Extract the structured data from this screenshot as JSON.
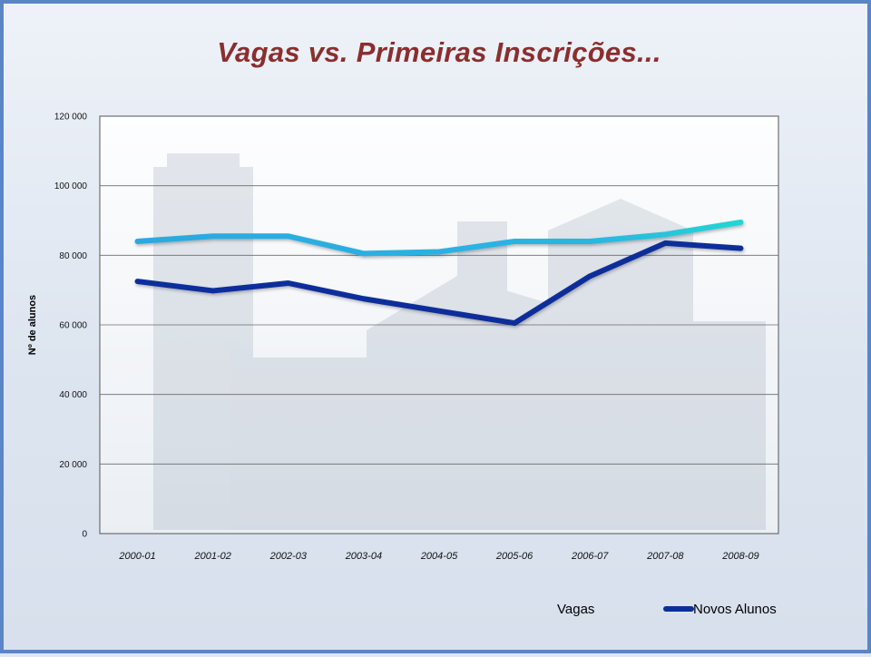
{
  "chart_data": {
    "type": "line",
    "title": "Vagas vs. Primeiras Inscrições...",
    "xlabel": "",
    "ylabel": "Nº de alunos",
    "categories": [
      "2000-01",
      "2001-02",
      "2002-03",
      "2003-04",
      "2004-05",
      "2005-06",
      "2006-07",
      "2007-08",
      "2008-09"
    ],
    "ylim": [
      0,
      120000
    ],
    "yticks": [
      0,
      20000,
      40000,
      60000,
      80000,
      100000,
      120000
    ],
    "ytick_labels": [
      "0",
      "20 000",
      "40 000",
      "60 000",
      "80 000",
      "100 000",
      "120 000"
    ],
    "grid": true,
    "legend_position": "bottom-right",
    "series": [
      {
        "name": "Vagas",
        "color": "#29a9e0",
        "color_end": "#22d1d6",
        "values": [
          84000,
          85500,
          85500,
          80500,
          81000,
          84000,
          84000,
          86000,
          89500
        ]
      },
      {
        "name": "Novos Alunos",
        "color": "#0a2f9a",
        "values": [
          72500,
          69800,
          72000,
          67500,
          64000,
          60500,
          74000,
          83500,
          82000
        ]
      }
    ]
  }
}
